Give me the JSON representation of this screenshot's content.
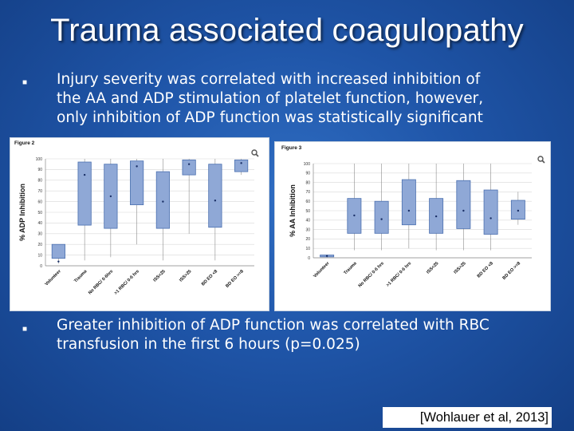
{
  "slide": {
    "title": "Trauma associated coagulopathy",
    "bullet1_lines": [
      "Injury severity was correlated with increased inhibition of",
      "the AA and ADP stimulation of platelet function, however,",
      "only inhibition of ADP function was statistically significant"
    ],
    "bullet2_lines": [
      "Greater inhibition of ADP function was correlated with RBC",
      "transfusion in the first 6 hours (p=0.025)"
    ],
    "citation": "[Wohlauer et al, 2013]",
    "colors": {
      "background": "#1f55a8",
      "box_fill": "#8fa8d6",
      "box_stroke": "#4a6fb0"
    }
  },
  "chart_data": [
    {
      "type": "box",
      "figure_label": "Figure 2",
      "ylabel": "% ADP Inhibition",
      "ylim": [
        0,
        100
      ],
      "yticks": [
        0,
        10,
        20,
        30,
        40,
        50,
        60,
        70,
        80,
        90,
        100
      ],
      "categories": [
        "Volunteer",
        "Trauma",
        "No RBC/ 0-6hrs",
        ">1 RBC/ 0-6 hrs",
        "ISS<25",
        "ISS>25",
        "BD EO <8",
        "BD EO >=8"
      ],
      "boxes": [
        {
          "q1": 7,
          "q3": 20,
          "mean": 4,
          "whisker_low": 2,
          "whisker_high": 20
        },
        {
          "q1": 38,
          "q3": 97,
          "mean": 85,
          "whisker_low": 5,
          "whisker_high": 100
        },
        {
          "q1": 35,
          "q3": 95,
          "mean": 65,
          "whisker_low": 8,
          "whisker_high": 100
        },
        {
          "q1": 57,
          "q3": 98,
          "mean": 93,
          "whisker_low": 20,
          "whisker_high": 100
        },
        {
          "q1": 35,
          "q3": 88,
          "mean": 60,
          "whisker_low": 5,
          "whisker_high": 100
        },
        {
          "q1": 85,
          "q3": 99,
          "mean": 95,
          "whisker_low": 30,
          "whisker_high": 100
        },
        {
          "q1": 36,
          "q3": 95,
          "mean": 61,
          "whisker_low": 5,
          "whisker_high": 100
        },
        {
          "q1": 88,
          "q3": 99,
          "mean": 96,
          "whisker_low": 85,
          "whisker_high": 100
        }
      ]
    },
    {
      "type": "box",
      "figure_label": "Figure 3",
      "ylabel": "% AA Inhibition",
      "ylim": [
        0,
        100
      ],
      "yticks": [
        0,
        10,
        20,
        30,
        40,
        50,
        60,
        70,
        80,
        90,
        100
      ],
      "categories": [
        "Volunteer",
        "Trauma",
        "No RBC/ 0-6 hrs",
        ">1 RBC/ 0-6 hrs",
        "ISS<25",
        "ISS>25",
        "BD EO <8",
        "BD EO >=8"
      ],
      "boxes": [
        {
          "q1": 1,
          "q3": 3,
          "mean": 2,
          "whisker_low": 0,
          "whisker_high": 3
        },
        {
          "q1": 26,
          "q3": 63,
          "mean": 45,
          "whisker_low": 8,
          "whisker_high": 100
        },
        {
          "q1": 26,
          "q3": 60,
          "mean": 41,
          "whisker_low": 8,
          "whisker_high": 100
        },
        {
          "q1": 35,
          "q3": 83,
          "mean": 50,
          "whisker_low": 10,
          "whisker_high": 100
        },
        {
          "q1": 26,
          "q3": 63,
          "mean": 44,
          "whisker_low": 8,
          "whisker_high": 100
        },
        {
          "q1": 31,
          "q3": 82,
          "mean": 50,
          "whisker_low": 8,
          "whisker_high": 100
        },
        {
          "q1": 25,
          "q3": 72,
          "mean": 42,
          "whisker_low": 8,
          "whisker_high": 100
        },
        {
          "q1": 41,
          "q3": 61,
          "mean": 50,
          "whisker_low": 35,
          "whisker_high": 70
        }
      ]
    }
  ]
}
